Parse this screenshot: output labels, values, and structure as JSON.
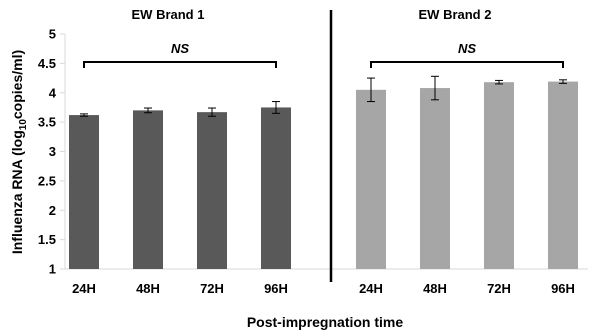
{
  "chart_data": {
    "type": "bar",
    "ylabel_main": "Influenza RNA (log",
    "ylabel_sub": "10",
    "ylabel_tail": "copies/ml)",
    "xlabel": "Post-impregnation time",
    "ylim": [
      1,
      5
    ],
    "yticks": [
      "1",
      "1.5",
      "2",
      "2.5",
      "3",
      "3.5",
      "4",
      "4.5",
      "5"
    ],
    "grid": false,
    "groups": [
      {
        "name": "EW Brand 1",
        "color": "#595959",
        "significance": "NS",
        "categories": [
          "24H",
          "48H",
          "72H",
          "96H"
        ],
        "values": [
          3.62,
          3.7,
          3.67,
          3.75
        ],
        "errors": [
          0.02,
          0.04,
          0.07,
          0.1
        ]
      },
      {
        "name": "EW Brand 2",
        "color": "#a6a6a6",
        "significance": "NS",
        "categories": [
          "24H",
          "48H",
          "72H",
          "96H"
        ],
        "values": [
          4.05,
          4.08,
          4.18,
          4.19
        ],
        "errors": [
          0.2,
          0.2,
          0.03,
          0.03
        ]
      }
    ]
  }
}
